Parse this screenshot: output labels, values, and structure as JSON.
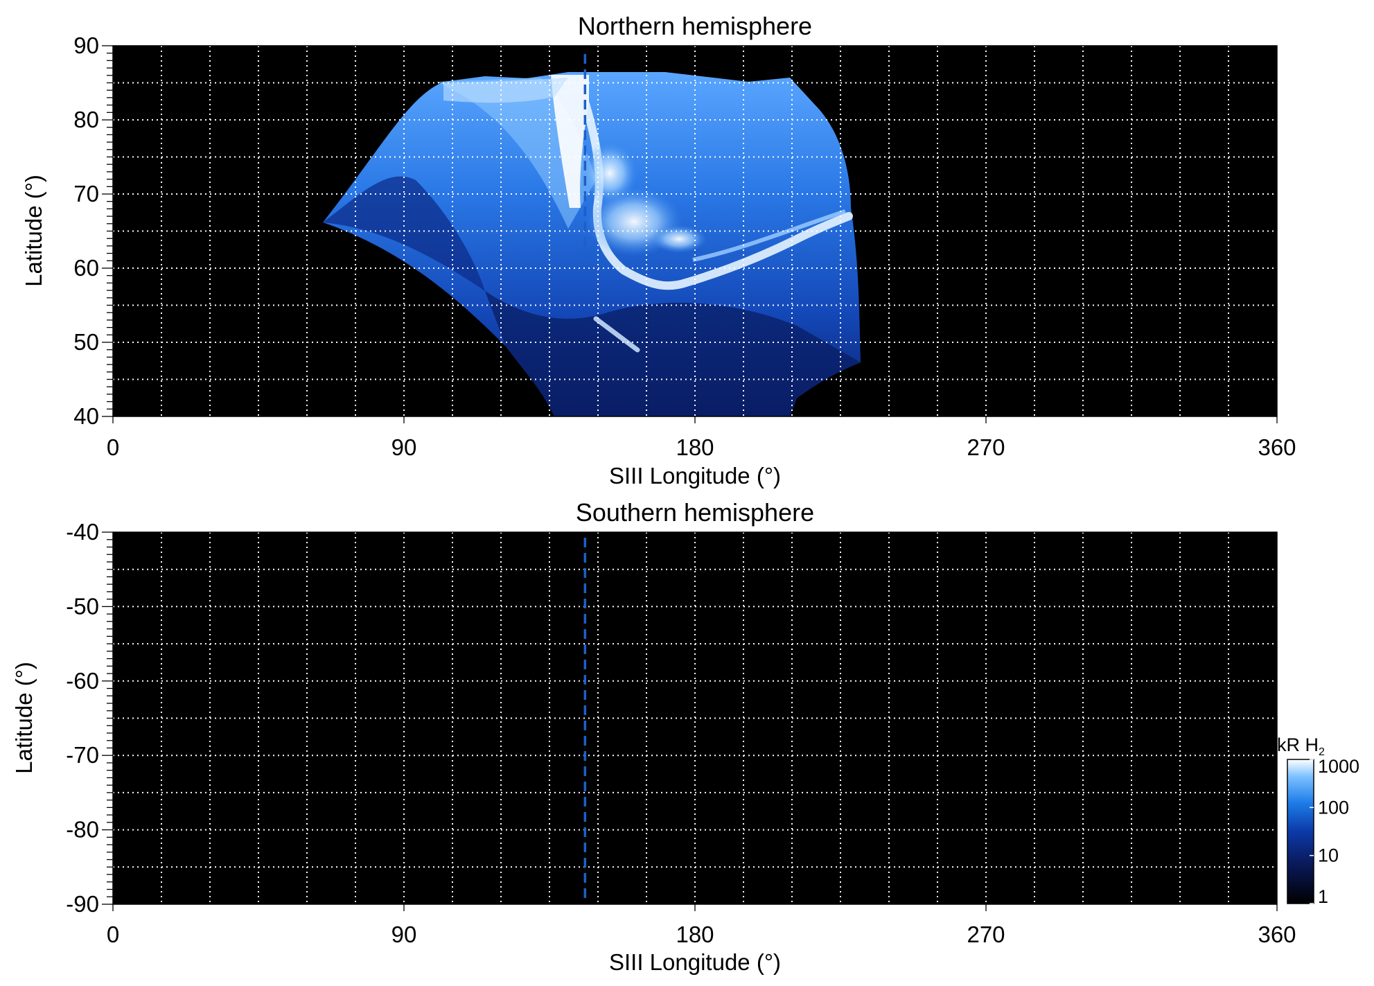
{
  "colors": {
    "background": "#000000",
    "grid": "#ffffff",
    "marker": "#1e5fc8",
    "colormap": [
      "#000000",
      "#0a1a5c",
      "#0b3aa8",
      "#1e7de8",
      "#7cc0ff",
      "#ffffff"
    ]
  },
  "chart_data": [
    {
      "type": "heatmap",
      "title": "Northern hemisphere",
      "xlabel": "SIII Longitude (°)",
      "ylabel": "Latitude (°)",
      "xlim": [
        0,
        360
      ],
      "ylim": [
        40,
        90
      ],
      "xticks": [
        "0",
        "90",
        "180",
        "270",
        "360"
      ],
      "yticks": [
        "40",
        "50",
        "60",
        "70",
        "80",
        "90"
      ],
      "grid": true,
      "marker_longitude": 146,
      "coverage": "polar projection of the northern aurora covering roughly 65–232° longitude and 40–87° latitude; main emission oval bright (~1000 kR) near 145–175° longitude at 55–80° latitude, arc extending to ~230° longitude near 62–68° latitude"
    },
    {
      "type": "heatmap",
      "title": "Southern hemisphere",
      "xlabel": "SIII Longitude (°)",
      "ylabel": "Latitude (°)",
      "xlim": [
        0,
        360
      ],
      "ylim": [
        -90,
        -40
      ],
      "xticks": [
        "0",
        "90",
        "180",
        "270",
        "360"
      ],
      "yticks": [
        "-40",
        "-50",
        "-60",
        "-70",
        "-80",
        "-90"
      ],
      "grid": true,
      "marker_longitude": 146,
      "coverage": "no data (entirely dark)"
    }
  ],
  "colorbar": {
    "label_main": "kR H",
    "label_sub": "2",
    "scale": "log",
    "range": [
      1,
      1000
    ],
    "ticks": [
      "1000",
      "100",
      "10",
      "1"
    ]
  }
}
